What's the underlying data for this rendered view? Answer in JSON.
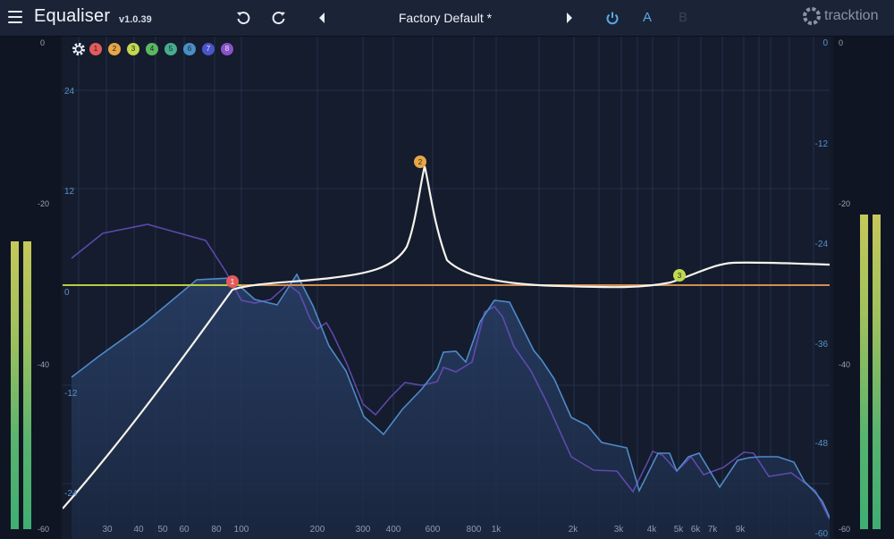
{
  "header": {
    "title": "Equaliser",
    "version": "v1.0.39",
    "preset": "Factory Default *",
    "a_label": "A",
    "b_label": "B",
    "logo": "tracktion"
  },
  "bands": [
    {
      "label": "1",
      "color": "#e45a5a"
    },
    {
      "label": "2",
      "color": "#e8a645"
    },
    {
      "label": "3",
      "color": "#c2d84e"
    },
    {
      "label": "4",
      "color": "#5cb860"
    },
    {
      "label": "5",
      "color": "#47ad8f"
    },
    {
      "label": "6",
      "color": "#4a8fc4"
    },
    {
      "label": "7",
      "color": "#4b55c8"
    },
    {
      "label": "8",
      "color": "#8a52c8"
    }
  ],
  "left_meter_scale": [
    "0",
    "-20",
    "-40",
    "-60"
  ],
  "right_meter_scale": [
    "0",
    "-20",
    "-40",
    "-60"
  ],
  "gain_labels": [
    "24",
    "12",
    "0",
    "-12",
    "-24"
  ],
  "db_labels": [
    "0",
    "-12",
    "-24",
    "-36",
    "-48",
    "-60"
  ],
  "freq_labels": [
    "30",
    "40",
    "50",
    "60",
    "80",
    "100",
    "200",
    "300",
    "400",
    "600",
    "800",
    "1k",
    "2k",
    "3k",
    "4k",
    "5k",
    "6k",
    "7k",
    "9k"
  ],
  "nodes": [
    {
      "label": "1",
      "color": "#e45a5a"
    },
    {
      "label": "2",
      "color": "#e8a645"
    },
    {
      "label": "3",
      "color": "#c2d84e"
    }
  ]
}
